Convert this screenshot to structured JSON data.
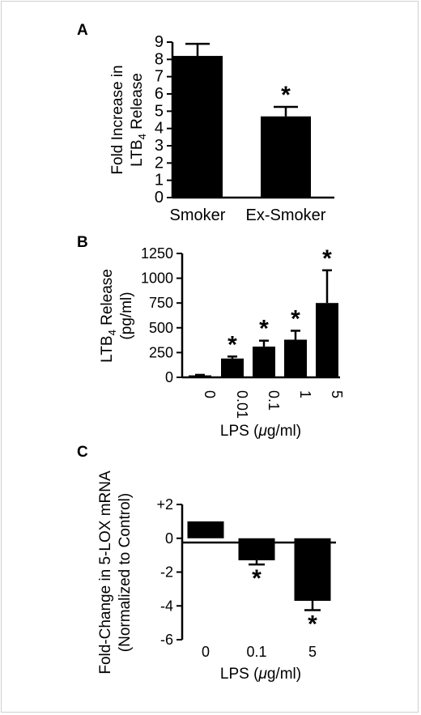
{
  "chart_data": [
    {
      "panel": "A",
      "type": "bar",
      "categories": [
        "Smoker",
        "Ex-Smoker"
      ],
      "values": [
        8.2,
        4.7
      ],
      "errors": [
        0.7,
        0.55
      ],
      "significance": [
        "",
        "*"
      ],
      "ylabel": {
        "line1": "Fold Increase in",
        "line2_pre": "LTB",
        "line2_sub": "4",
        "line2_post": " Release"
      },
      "ylim": [
        0,
        9
      ],
      "yticks": [
        "0",
        "1",
        "2",
        "3",
        "4",
        "5",
        "6",
        "7",
        "8",
        "9"
      ],
      "grid": false
    },
    {
      "panel": "B",
      "type": "bar",
      "categories": [
        "0",
        "0.01",
        "0.1",
        "1",
        "5"
      ],
      "values": [
        20,
        190,
        310,
        380,
        750
      ],
      "errors": [
        5,
        20,
        60,
        90,
        330
      ],
      "significance": [
        "",
        "*",
        "*",
        "*",
        "*"
      ],
      "xlabel": {
        "pre": "LPS (",
        "mu": "μ",
        "post": "g/ml)"
      },
      "ylabel": {
        "line1_pre": "LTB",
        "line1_sub": "4",
        "line1_post": " Release",
        "line2": "(pg/ml)"
      },
      "ylim": [
        0,
        1250
      ],
      "yticks": [
        "0",
        "250",
        "500",
        "750",
        "1000",
        "1250"
      ],
      "grid": false
    },
    {
      "panel": "C",
      "type": "bar",
      "categories": [
        "0",
        "0.1",
        "5"
      ],
      "values": [
        1.0,
        -1.3,
        -3.7
      ],
      "errors": [
        0,
        0.25,
        0.55
      ],
      "significance": [
        "",
        "*",
        "*"
      ],
      "xlabel": {
        "pre": "LPS (",
        "mu": "μ",
        "post": "g/ml)"
      },
      "ylabel": {
        "line1": "Fold-Change in 5-LOX mRNA",
        "line2": "(Normalized to Control)"
      },
      "ylim": [
        -6,
        2
      ],
      "yticks": [
        "-6",
        "-4",
        "-2",
        "0",
        "+2"
      ],
      "grid": false
    }
  ]
}
